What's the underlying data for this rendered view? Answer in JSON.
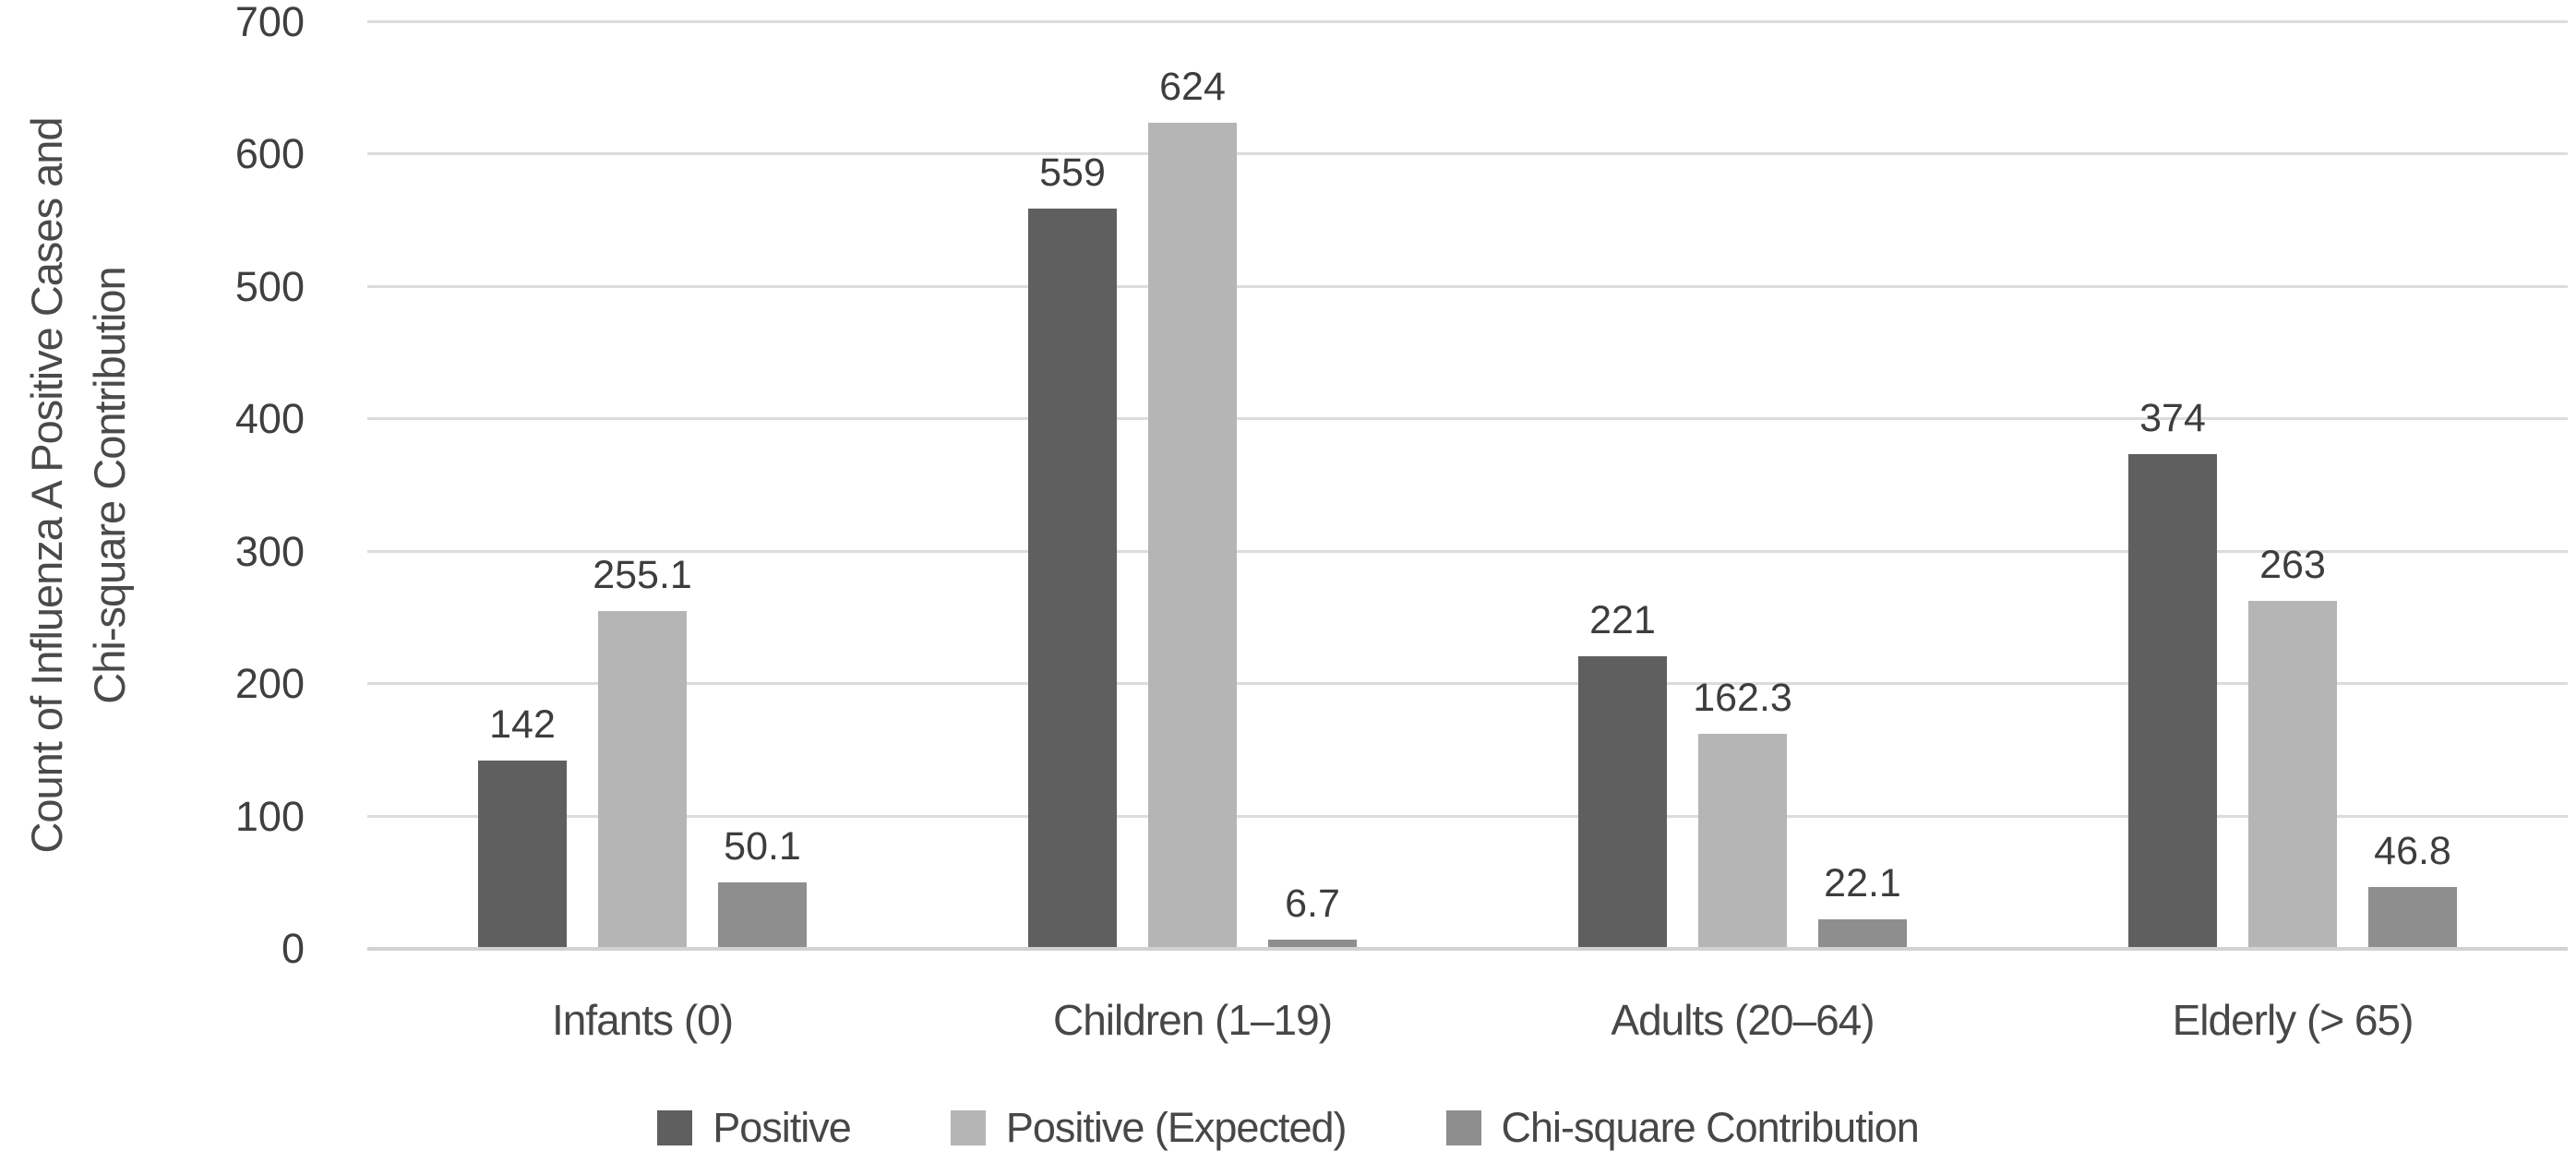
{
  "chart_data": {
    "type": "bar",
    "title": "",
    "ylabel": "Count of Influenza A Positive Cases and Chi-square Contribution",
    "ylabel_lines": [
      "Count of Influenza A Positive Cases and",
      "Chi-square Contribution"
    ],
    "categories": [
      "Infants (0)",
      "Children (1–19)",
      "Adults (20–64)",
      "Elderly (> 65)"
    ],
    "series": [
      {
        "name": "Positive",
        "color": "#5f5f5f",
        "values": [
          142,
          559,
          221,
          374
        ]
      },
      {
        "name": "Positive (Expected)",
        "color": "#b5b5b5",
        "values": [
          255.1,
          624,
          162.3,
          263
        ]
      },
      {
        "name": "Chi-square Contribution",
        "color": "#8e8e8e",
        "values": [
          50.1,
          6.7,
          22.1,
          46.8
        ]
      }
    ],
    "data_labels": [
      [
        "142",
        "559",
        "221",
        "374"
      ],
      [
        "255.1",
        "624",
        "162.3",
        "263"
      ],
      [
        "50.1",
        "6.7",
        "22.1",
        "46.8"
      ]
    ],
    "ylim": [
      0,
      700
    ],
    "yticks": [
      700,
      600,
      500,
      400,
      300,
      200,
      100,
      0
    ],
    "grid": true,
    "legend_position": "bottom"
  },
  "styles": {
    "gridline_color": "#dcdcdc",
    "baseline_color": "#d2d2d2",
    "tick_text_color": "#3f3f3f",
    "data_label_color": "#3d3d3d",
    "category_text_color": "#474747",
    "legend_text_color": "#474747",
    "axis_title_color": "#4a4a4a",
    "background": "#ffffff"
  }
}
